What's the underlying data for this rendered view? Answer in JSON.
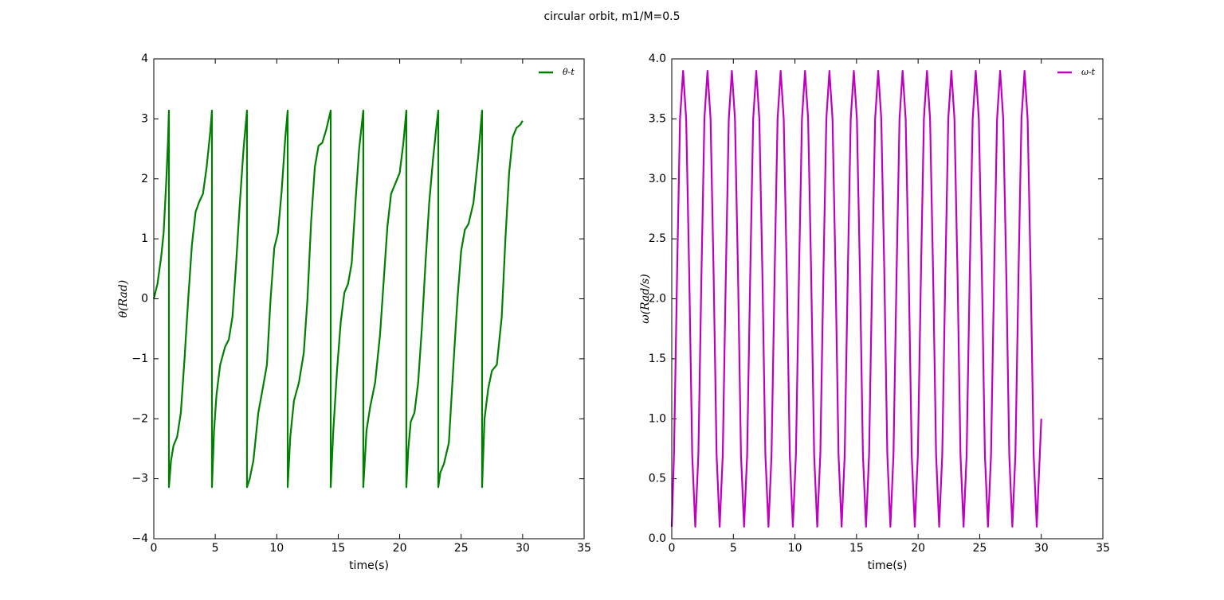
{
  "title": "circular orbit, m1/M=0.5",
  "chart_data": [
    {
      "type": "line",
      "xlabel": "time(s)",
      "ylabel": "θ(Rad)",
      "legend": "upper right",
      "xlim": [
        0,
        35
      ],
      "ylim": [
        -4,
        4
      ],
      "xticks": [
        0,
        5,
        10,
        15,
        20,
        25,
        30,
        35
      ],
      "yticks": [
        {
          "value": -4,
          "label": "−4"
        },
        {
          "value": -3,
          "label": "−3"
        },
        {
          "value": -2,
          "label": "−2"
        },
        {
          "value": -1,
          "label": "−1"
        },
        0,
        1,
        2,
        3,
        4
      ],
      "series": [
        {
          "name": "θ-t",
          "color": "#007f00",
          "x": [
            0,
            0.3,
            0.6,
            0.8,
            1.0,
            1.15,
            1.23,
            1.23,
            1.4,
            1.6,
            1.9,
            2.2,
            2.5,
            2.8,
            3.1,
            3.4,
            3.7,
            4.0,
            4.3,
            4.6,
            4.73,
            4.73,
            4.9,
            5.1,
            5.4,
            5.8,
            6.1,
            6.4,
            6.7,
            7.0,
            7.3,
            7.58,
            7.58,
            7.8,
            8.1,
            8.5,
            8.9,
            9.2,
            9.5,
            9.8,
            10.1,
            10.4,
            10.7,
            10.89,
            10.89,
            11.1,
            11.4,
            11.8,
            12.2,
            12.5,
            12.8,
            13.1,
            13.4,
            13.7,
            14.0,
            14.39,
            14.39,
            14.6,
            14.9,
            15.2,
            15.5,
            15.8,
            16.1,
            16.4,
            16.7,
            17.04,
            17.04,
            17.3,
            17.6,
            18.0,
            18.4,
            18.7,
            19.0,
            19.3,
            19.6,
            20.0,
            20.3,
            20.54,
            20.54,
            20.7,
            20.9,
            21.2,
            21.5,
            21.8,
            22.1,
            22.4,
            22.7,
            23.0,
            23.14,
            23.14,
            23.3,
            23.6,
            24.0,
            24.4,
            24.7,
            25.0,
            25.3,
            25.6,
            26.0,
            26.4,
            26.7,
            26.7,
            26.9,
            27.2,
            27.5,
            27.9,
            28.3,
            28.6,
            28.9,
            29.2,
            29.5,
            29.8,
            30.0
          ],
          "values": [
            0,
            0.25,
            0.7,
            1.1,
            1.9,
            2.6,
            3.14,
            -3.14,
            -2.7,
            -2.45,
            -2.3,
            -1.9,
            -1.0,
            0.0,
            0.9,
            1.45,
            1.62,
            1.75,
            2.2,
            2.8,
            3.14,
            -3.14,
            -2.2,
            -1.6,
            -1.1,
            -0.8,
            -0.68,
            -0.3,
            0.6,
            1.6,
            2.5,
            3.14,
            -3.14,
            -3.0,
            -2.7,
            -1.9,
            -1.45,
            -1.1,
            0.0,
            0.85,
            1.1,
            1.8,
            2.7,
            3.14,
            -3.14,
            -2.3,
            -1.7,
            -1.4,
            -0.9,
            0.0,
            1.3,
            2.2,
            2.55,
            2.6,
            2.8,
            3.14,
            -3.14,
            -2.2,
            -1.2,
            -0.4,
            0.1,
            0.25,
            0.6,
            1.6,
            2.5,
            3.14,
            -3.14,
            -2.2,
            -1.8,
            -1.4,
            -0.6,
            0.3,
            1.2,
            1.75,
            1.9,
            2.1,
            2.6,
            3.14,
            -3.14,
            -2.5,
            -2.05,
            -1.9,
            -1.4,
            -0.5,
            0.6,
            1.6,
            2.3,
            2.9,
            3.14,
            -3.14,
            -2.9,
            -2.75,
            -2.4,
            -1.0,
            0.0,
            0.8,
            1.15,
            1.25,
            1.6,
            2.4,
            3.14,
            -3.14,
            -2.0,
            -1.5,
            -1.2,
            -1.1,
            -0.3,
            1.0,
            2.1,
            2.7,
            2.85,
            2.9,
            2.97
          ]
        }
      ]
    },
    {
      "type": "line",
      "xlabel": "time(s)",
      "ylabel": "ω(Rad/s)",
      "legend": "upper right",
      "xlim": [
        0,
        35
      ],
      "ylim": [
        0,
        4
      ],
      "xticks": [
        0,
        5,
        10,
        15,
        20,
        25,
        30,
        35
      ],
      "yticks": [
        {
          "value": 0,
          "label": "0.0"
        },
        0.5,
        {
          "value": 1,
          "label": "1.0"
        },
        1.5,
        {
          "value": 2,
          "label": "2.0"
        },
        2.5,
        {
          "value": 3,
          "label": "3.0"
        },
        3.5,
        {
          "value": 4,
          "label": "4.0"
        }
      ],
      "series": [
        {
          "name": "ω-t",
          "color": "#bf00bf",
          "x": [
            0,
            0.18,
            0.43,
            0.67,
            0.92,
            1.17,
            1.42,
            1.66,
            1.91,
            2.16,
            2.41,
            2.65,
            2.9,
            3.15,
            3.4,
            3.64,
            3.89,
            4.14,
            4.39,
            4.63,
            4.88,
            5.13,
            5.38,
            5.62,
            5.87,
            6.12,
            6.37,
            6.61,
            6.86,
            7.11,
            7.36,
            7.6,
            7.85,
            8.1,
            8.35,
            8.59,
            8.84,
            9.09,
            9.34,
            9.58,
            9.83,
            10.08,
            10.33,
            10.57,
            10.82,
            11.07,
            11.32,
            11.56,
            11.81,
            12.06,
            12.31,
            12.55,
            12.8,
            13.05,
            13.3,
            13.54,
            13.79,
            14.04,
            14.29,
            14.53,
            14.78,
            15.03,
            15.28,
            15.52,
            15.77,
            16.02,
            16.27,
            16.51,
            16.76,
            17.01,
            17.26,
            17.5,
            17.75,
            18.0,
            18.25,
            18.49,
            18.74,
            18.99,
            19.24,
            19.48,
            19.73,
            19.98,
            20.23,
            20.47,
            20.72,
            20.97,
            21.22,
            21.46,
            21.71,
            21.96,
            22.21,
            22.45,
            22.7,
            22.95,
            23.2,
            23.44,
            23.69,
            23.94,
            24.19,
            24.43,
            24.68,
            24.93,
            25.18,
            25.42,
            25.67,
            25.92,
            26.17,
            26.41,
            26.66,
            26.91,
            27.16,
            27.4,
            27.65,
            27.9,
            28.15,
            28.39,
            28.64,
            28.89,
            29.14,
            29.38,
            29.63,
            29.88,
            30.0
          ],
          "values": [
            0.1,
            0.7,
            2.2,
            3.5,
            3.9,
            3.5,
            2.2,
            0.7,
            0.1,
            0.7,
            2.2,
            3.5,
            3.9,
            3.5,
            2.2,
            0.7,
            0.1,
            0.7,
            2.2,
            3.5,
            3.9,
            3.5,
            2.2,
            0.7,
            0.1,
            0.7,
            2.2,
            3.5,
            3.9,
            3.5,
            2.2,
            0.7,
            0.1,
            0.7,
            2.2,
            3.5,
            3.9,
            3.5,
            2.2,
            0.7,
            0.1,
            0.7,
            2.2,
            3.5,
            3.9,
            3.5,
            2.2,
            0.7,
            0.1,
            0.7,
            2.2,
            3.5,
            3.9,
            3.5,
            2.2,
            0.7,
            0.1,
            0.7,
            2.2,
            3.5,
            3.9,
            3.5,
            2.2,
            0.7,
            0.1,
            0.7,
            2.2,
            3.5,
            3.9,
            3.5,
            2.2,
            0.7,
            0.1,
            0.7,
            2.2,
            3.5,
            3.9,
            3.5,
            2.2,
            0.7,
            0.1,
            0.7,
            2.2,
            3.5,
            3.9,
            3.5,
            2.2,
            0.7,
            0.1,
            0.7,
            2.2,
            3.5,
            3.9,
            3.5,
            2.2,
            0.7,
            0.1,
            0.7,
            2.2,
            3.5,
            3.9,
            3.5,
            2.2,
            0.7,
            0.1,
            0.7,
            2.2,
            3.5,
            3.9,
            3.5,
            2.2,
            0.7,
            0.1,
            0.7,
            2.2,
            3.5,
            3.9,
            3.5,
            2.2,
            0.7,
            0.1,
            0.7,
            1.0
          ]
        }
      ]
    }
  ]
}
